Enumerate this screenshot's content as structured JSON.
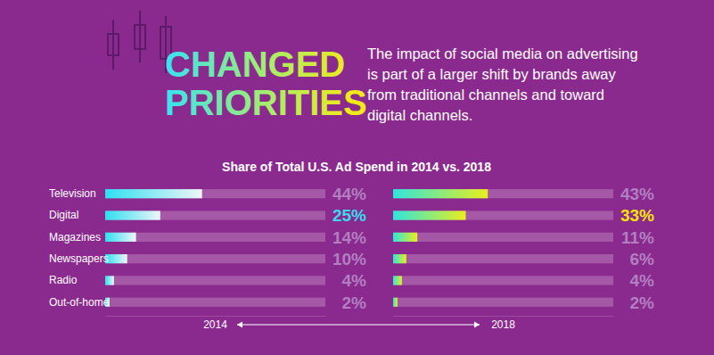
{
  "header": {
    "title": [
      "CHANGED",
      "PRIORITIES"
    ],
    "description": [
      "The impact of social media on advertising",
      "is part of a larger shift by brands away",
      "from traditional channels and toward",
      "digital channels."
    ],
    "subtitle": "Share of Total U.S. Ad Spend in 2014 vs. 2018"
  },
  "chart_data": [
    {
      "type": "bar",
      "orientation": "horizontal",
      "xlabel": "2014",
      "categories": [
        "Television",
        "Digital",
        "Magazines",
        "Newspapers",
        "Radio",
        "Out-of-home"
      ],
      "values": [
        44,
        25,
        14,
        10,
        4,
        2
      ],
      "value_labels": [
        "44%",
        "25%",
        "14%",
        "10%",
        "4%",
        "2%"
      ],
      "xlim": [
        0,
        100
      ],
      "data_labels": true,
      "tick_labels": "y"
    },
    {
      "type": "bar",
      "orientation": "horizontal",
      "xlabel": "2018",
      "values": [
        43,
        33,
        11,
        6,
        4,
        2
      ],
      "value_labels": [
        "43%",
        "33%",
        "11%",
        "6%",
        "4%",
        "2%"
      ],
      "xlim": [
        0,
        100
      ],
      "data_labels": true,
      "tick_labels": false
    }
  ]
}
